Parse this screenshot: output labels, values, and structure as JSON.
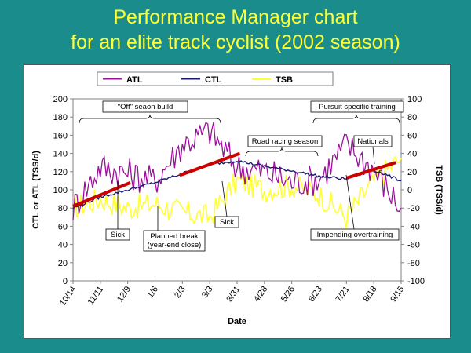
{
  "slide": {
    "title_line1": "Performance Manager chart",
    "title_line2": "for an elite track cyclist (2002 season)"
  },
  "chart_data": {
    "type": "line",
    "xlabel": "Date",
    "ylabel_left": "CTL or ATL (TSS/d)",
    "ylabel_right": "TSB (TSS/d)",
    "ylim_left": [
      0,
      200
    ],
    "ylim_right": [
      -100,
      100
    ],
    "yticks_left": [
      "0",
      "20",
      "40",
      "60",
      "80",
      "100",
      "120",
      "140",
      "160",
      "180",
      "200"
    ],
    "yticks_right": [
      "-100",
      "-80",
      "-60",
      "-40",
      "-20",
      "0",
      "20",
      "40",
      "60",
      "80",
      "100"
    ],
    "x_ticks": [
      "10/14",
      "11/11",
      "12/9",
      "1/6",
      "2/3",
      "3/3",
      "3/31",
      "4/28",
      "5/26",
      "6/23",
      "7/21",
      "8/18",
      "9/15"
    ],
    "legend": [
      "ATL",
      "CTL",
      "TSB"
    ],
    "colors": {
      "ATL": "#9b119b",
      "CTL": "#1a1a6e",
      "TSB": "#ffff33",
      "trend": "#cc0000"
    },
    "series": [
      {
        "name": "CTL",
        "axis": "left",
        "values": [
          80,
          92,
          100,
          108,
          118,
          128,
          132,
          126,
          121,
          115,
          112,
          122,
          110
        ]
      },
      {
        "name": "ATL",
        "axis": "left",
        "values": [
          80,
          125,
          118,
          110,
          150,
          165,
          125,
          120,
          108,
          112,
          150,
          122,
          80
        ]
      },
      {
        "name": "TSB",
        "axis": "right",
        "values": [
          -20,
          -10,
          -20,
          -15,
          -25,
          -30,
          10,
          0,
          5,
          -5,
          -30,
          10,
          35
        ]
      }
    ],
    "trend_segments": [
      {
        "x": [
          0,
          2.1
        ],
        "y": [
          82,
          108
        ]
      },
      {
        "x": [
          3.9,
          6.1
        ],
        "y": [
          116,
          140
        ]
      },
      {
        "x": [
          10.0,
          11.8
        ],
        "y": [
          113,
          130
        ]
      }
    ],
    "annotations": [
      "\"Off\" seaon build",
      "Pursuit specific training",
      "Road racing season",
      "Nationals",
      "Sick",
      "Planned break (year-end close)",
      "Sick",
      "Impending overtraining"
    ],
    "annotation_planned_break_line2": "(year-end close)",
    "annotation_planned_break_line1": "Planned break",
    "grid": false,
    "legend_position": "top"
  }
}
